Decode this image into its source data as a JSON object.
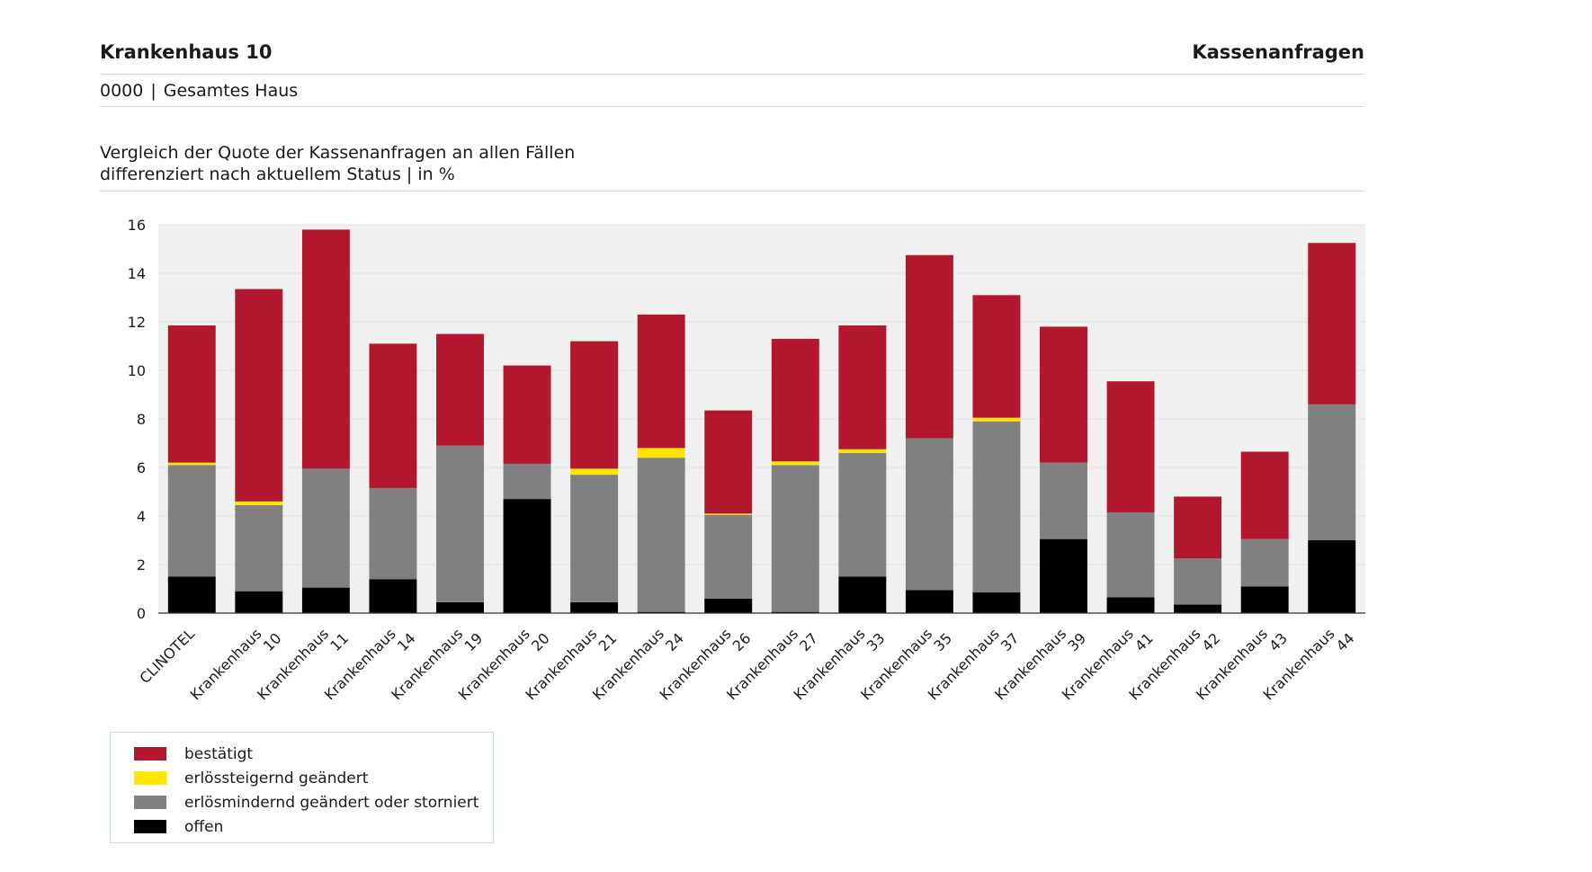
{
  "header": {
    "hospital": "Krankenhaus 10",
    "section": "Kassenanfragen",
    "code": "0000",
    "scope": "Gesamtes Haus",
    "separator": "|"
  },
  "caption": {
    "line1": "Vergleich der Quote der Kassenanfragen an allen Fällen",
    "line2": "differenziert nach aktuellem Status | in %"
  },
  "colors": {
    "bestaetigt": "#b3172f",
    "erloessteigernd": "#ffe500",
    "erloesmindernd": "#808080",
    "offen": "#000000",
    "plot_background": "#f0f0f0"
  },
  "chart_data": {
    "type": "bar",
    "stacked": true,
    "ylim": [
      0,
      16
    ],
    "yticks": [
      0,
      2,
      4,
      6,
      8,
      10,
      12,
      14,
      16
    ],
    "grid": true,
    "legend_position": "bottom-left",
    "categories": [
      [
        "CLINOTEL"
      ],
      [
        "Krankenhaus",
        "10"
      ],
      [
        "Krankenhaus",
        "11"
      ],
      [
        "Krankenhaus",
        "14"
      ],
      [
        "Krankenhaus",
        "19"
      ],
      [
        "Krankenhaus",
        "20"
      ],
      [
        "Krankenhaus",
        "21"
      ],
      [
        "Krankenhaus",
        "24"
      ],
      [
        "Krankenhaus",
        "26"
      ],
      [
        "Krankenhaus",
        "27"
      ],
      [
        "Krankenhaus",
        "33"
      ],
      [
        "Krankenhaus",
        "35"
      ],
      [
        "Krankenhaus",
        "37"
      ],
      [
        "Krankenhaus",
        "39"
      ],
      [
        "Krankenhaus",
        "41"
      ],
      [
        "Krankenhaus",
        "42"
      ],
      [
        "Krankenhaus",
        "43"
      ],
      [
        "Krankenhaus",
        "44"
      ]
    ],
    "series": [
      {
        "name": "offen",
        "color": "#000000",
        "values": [
          1.5,
          0.9,
          1.05,
          1.4,
          0.45,
          4.7,
          0.45,
          0.05,
          0.6,
          0.05,
          1.5,
          0.95,
          0.85,
          3.05,
          0.65,
          0.35,
          1.1,
          3.0
        ]
      },
      {
        "name": "erlösmindernd geändert oder storniert",
        "color": "#808080",
        "values": [
          4.6,
          3.55,
          4.9,
          3.75,
          6.45,
          1.45,
          5.25,
          6.35,
          3.45,
          6.05,
          5.1,
          6.25,
          7.05,
          3.15,
          3.5,
          1.9,
          1.95,
          5.6
        ]
      },
      {
        "name": "erlössteigernd geändert",
        "color": "#ffe500",
        "values": [
          0.1,
          0.15,
          0,
          0,
          0,
          0,
          0.25,
          0.4,
          0.05,
          0.15,
          0.15,
          0,
          0.15,
          0,
          0,
          0,
          0,
          0
        ]
      },
      {
        "name": "bestätigt",
        "color": "#b3172f",
        "values": [
          5.65,
          8.75,
          9.85,
          5.95,
          4.6,
          4.05,
          5.25,
          5.5,
          4.25,
          5.05,
          5.1,
          7.55,
          5.05,
          5.6,
          5.4,
          2.55,
          3.6,
          6.65
        ]
      }
    ]
  },
  "legend": {
    "items": [
      {
        "label": "bestätigt",
        "color": "#b3172f"
      },
      {
        "label": "erlössteigernd geändert",
        "color": "#ffe500"
      },
      {
        "label": "erlösmindernd geändert oder storniert",
        "color": "#808080"
      },
      {
        "label": "offen",
        "color": "#000000"
      }
    ]
  }
}
